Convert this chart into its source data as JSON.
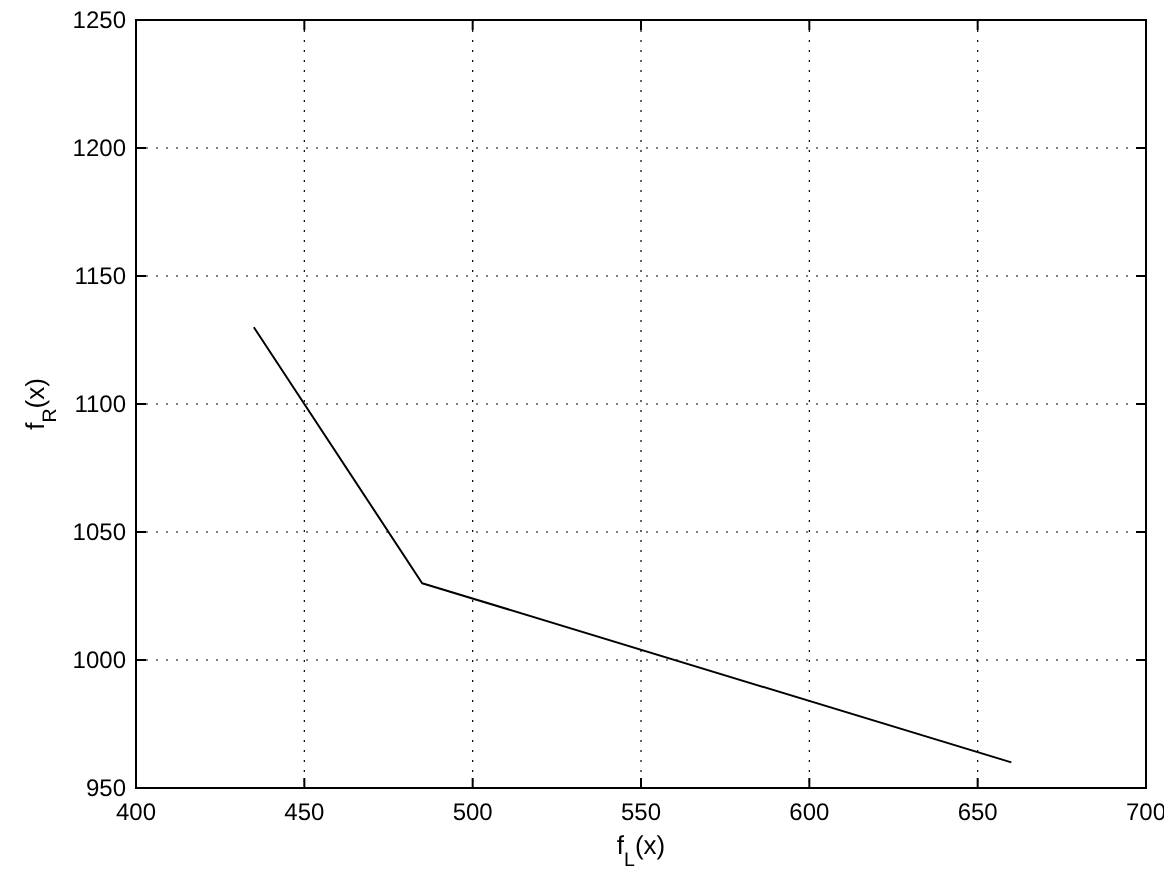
{
  "chart_data": {
    "type": "line",
    "xlabel": "f$_{L}$(x)",
    "ylabel": "f$_{R}$(x)",
    "x": [
      435,
      485,
      660
    ],
    "series": [
      {
        "color": "#000000",
        "values": [
          1130,
          1030,
          960
        ]
      }
    ],
    "xlim": [
      400,
      700
    ],
    "xticks": [
      400,
      450,
      500,
      550,
      600,
      650,
      700
    ],
    "ylim": [
      950,
      1250
    ],
    "yticks": [
      950,
      1000,
      1050,
      1100,
      1150,
      1200,
      1250
    ],
    "grid": true
  }
}
